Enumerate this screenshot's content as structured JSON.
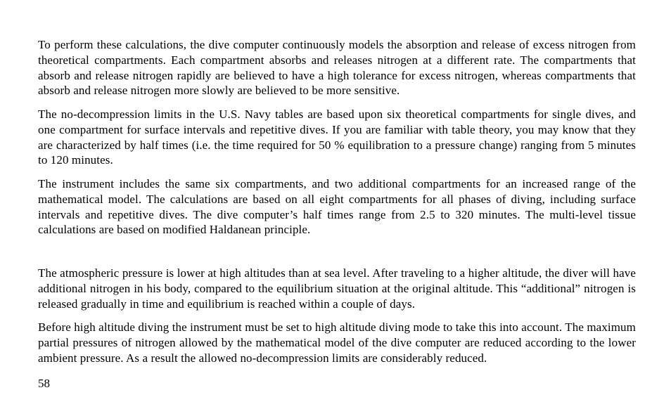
{
  "page": {
    "number": "58",
    "paragraphs": [
      "To perform these calculations, the dive computer continuously models the absorption and release of excess nitrogen from theoretical compartments. Each compartment absorbs and releases nitrogen at a different rate. The compartments that absorb and release nitrogen rapidly are believed to have a high tolerance for excess nitrogen, whereas compartments that absorb and release nitrogen more slowly are believed to be more sensitive.",
      "The no-decompression limits in the U.S. Navy tables are based upon six theoretical compartments for single dives, and one compartment for surface intervals and repetitive dives. If you are familiar with table theory, you may know that they are characterized by half times (i.e. the time required for 50 % equilibration to a pressure change) ranging from 5 minutes to 120 minutes.",
      "The instrument includes the same six compartments, and two additional compartments for an increased range of the mathematical model. The calculations are based on all eight compartments for all phases of diving, including surface intervals and repetitive dives. The dive computer’s half times range from 2.5 to 320 minutes. The multi-level tissue calculations are based on modified Haldanean principle.",
      "The atmospheric pressure is lower at high altitudes than at sea level. After traveling to a higher altitude, the diver will have additional nitrogen in his body, compared to the equilibrium situation at the original altitude. This “additional” nitrogen is released gradually in time and equilibrium is reached within a couple of days.",
      "Before high altitude diving the instrument must be set to high altitude diving mode to take this into account. The maximum partial pressures of nitrogen allowed by the mathematical model of the dive computer are reduced according to the lower ambient pressure. As a result the allowed no-decompression limits are considerably reduced."
    ]
  },
  "style": {
    "font_family": "Times New Roman",
    "font_size_pt": 13,
    "line_height": 1.28,
    "text_color": "#000000",
    "background_color": "#ffffff",
    "text_align": "justify"
  }
}
